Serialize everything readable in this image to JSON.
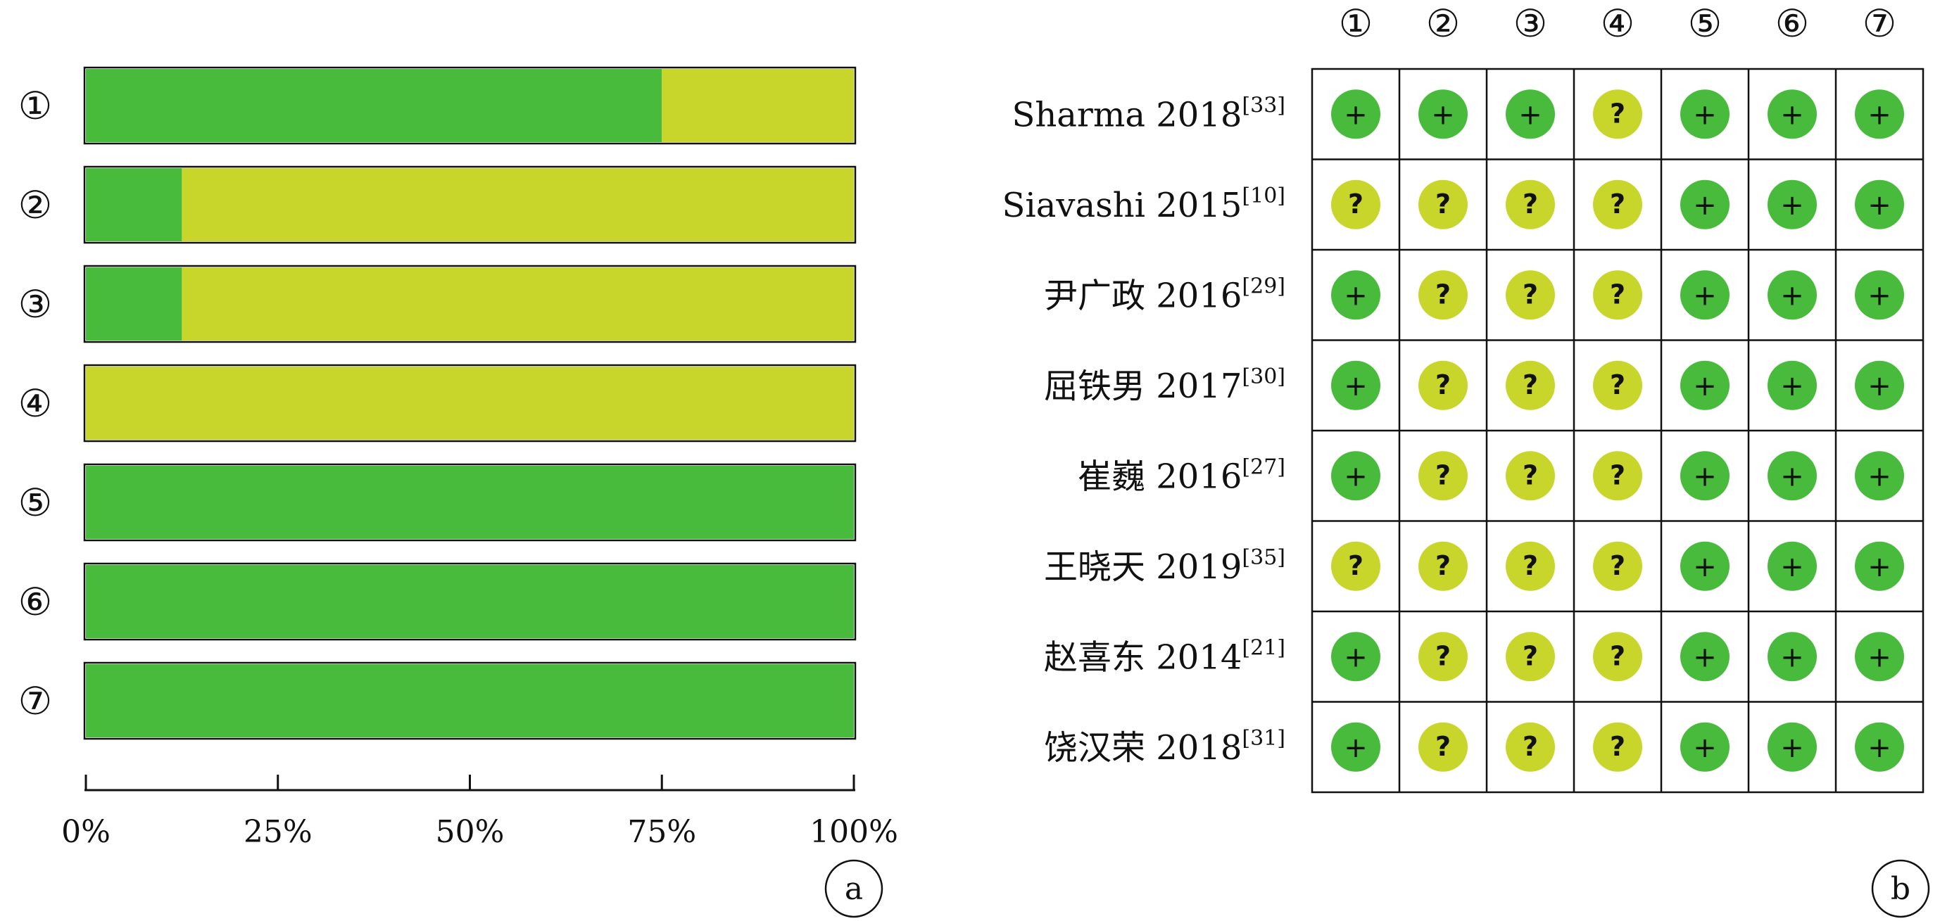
{
  "colors": {
    "low": "#48bb3c",
    "unclear": "#c8d62b",
    "border": "#111111"
  },
  "domains": [
    "①",
    "②",
    "③",
    "④",
    "⑤",
    "⑥",
    "⑦"
  ],
  "chart_data": [
    {
      "type": "bar",
      "orientation": "horizontal",
      "stacked": true,
      "categories": [
        "①",
        "②",
        "③",
        "④",
        "⑤",
        "⑥",
        "⑦"
      ],
      "series": [
        {
          "key": "low",
          "values": [
            75,
            12.5,
            12.5,
            0,
            100,
            100,
            100
          ]
        },
        {
          "key": "unclear",
          "values": [
            25,
            87.5,
            87.5,
            100,
            0,
            0,
            0
          ]
        }
      ],
      "xticks": [
        "0%",
        "25%",
        "50%",
        "75%",
        "100%"
      ],
      "xlim": [
        0,
        100
      ],
      "panel_label": "a"
    },
    {
      "type": "table",
      "columns": [
        "①",
        "②",
        "③",
        "④",
        "⑤",
        "⑥",
        "⑦"
      ],
      "rows": [
        {
          "study": "Sharma 2018",
          "ref": "[33]",
          "judgements": [
            "+",
            "+",
            "+",
            "?",
            "+",
            "+",
            "+"
          ]
        },
        {
          "study": "Siavashi 2015",
          "ref": "[10]",
          "judgements": [
            "?",
            "?",
            "?",
            "?",
            "+",
            "+",
            "+"
          ]
        },
        {
          "study": "尹广政 2016",
          "ref": "[29]",
          "judgements": [
            "+",
            "?",
            "?",
            "?",
            "+",
            "+",
            "+"
          ]
        },
        {
          "study": "屈铁男 2017",
          "ref": "[30]",
          "judgements": [
            "+",
            "?",
            "?",
            "?",
            "+",
            "+",
            "+"
          ]
        },
        {
          "study": "崔巍 2016",
          "ref": "[27]",
          "judgements": [
            "+",
            "?",
            "?",
            "?",
            "+",
            "+",
            "+"
          ]
        },
        {
          "study": "王晓天 2019",
          "ref": "[35]",
          "judgements": [
            "?",
            "?",
            "?",
            "?",
            "+",
            "+",
            "+"
          ]
        },
        {
          "study": "赵喜东 2014",
          "ref": "[21]",
          "judgements": [
            "+",
            "?",
            "?",
            "?",
            "+",
            "+",
            "+"
          ]
        },
        {
          "study": "饶汉荣 2018",
          "ref": "[31]",
          "judgements": [
            "+",
            "?",
            "?",
            "?",
            "+",
            "+",
            "+"
          ]
        }
      ],
      "panel_label": "b"
    }
  ]
}
